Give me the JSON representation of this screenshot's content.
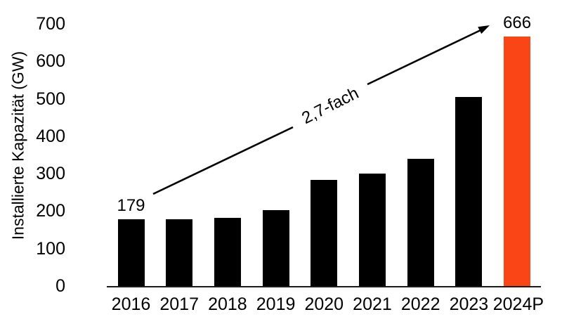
{
  "chart_data": {
    "type": "bar",
    "title": "",
    "xlabel": "",
    "ylabel": "Installierte Kapazität (GW)",
    "categories": [
      "2016",
      "2017",
      "2018",
      "2019",
      "2020",
      "2021",
      "2022",
      "2023",
      "2024P"
    ],
    "values": [
      179,
      178,
      182,
      202,
      284,
      300,
      340,
      505,
      666
    ],
    "bar_labels": [
      "179",
      "",
      "",
      "",
      "",
      "",
      "",
      "",
      "666"
    ],
    "highlight_index": 8,
    "ylim": [
      0,
      700
    ],
    "yticks": [
      0,
      100,
      200,
      300,
      400,
      500,
      600,
      700
    ],
    "grid": false,
    "legend": null,
    "annotation": {
      "text": "2,7-fach"
    }
  },
  "colors": {
    "bar_default": "#000000",
    "bar_highlight": "#FA4616",
    "axis_line": "#1a1a1a",
    "text": "#000000",
    "background": "#ffffff"
  }
}
